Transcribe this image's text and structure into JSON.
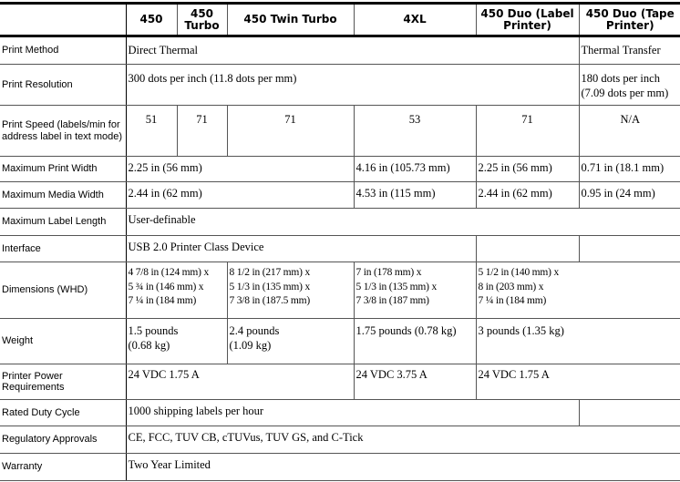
{
  "header": [
    "",
    "450",
    "450 Turbo",
    "450 Twin Turbo",
    "4XL",
    "450 Duo (Label Printer)",
    "450 Duo (Tape Printer)"
  ],
  "rows": {
    "print_method": {
      "label": "Print Method",
      "direct": "Direct Thermal",
      "tape": "Thermal Transfer"
    },
    "print_resolution": {
      "label": "Print Resolution",
      "main": "300 dots per inch (11.8 dots per mm)",
      "tape": "180 dots per inch (7.09 dots per mm)"
    },
    "print_speed": {
      "label": "Print Speed (labels/min for address label in text mode)",
      "values": [
        "51",
        "71",
        "71",
        "53",
        "71",
        "N/A"
      ]
    },
    "max_print_width": {
      "label": "Maximum Print Width",
      "a": "2.25 in (56 mm)",
      "b": "4.16 in (105.73 mm)",
      "c": "2.25 in (56 mm)",
      "d": "0.71 in (18.1 mm)"
    },
    "max_media_width": {
      "label": "Maximum Media Width",
      "a": "2.44 in (62 mm)",
      "b": "4.53 in (115 mm)",
      "c": "2.44 in (62 mm)",
      "d": "0.95 in (24 mm)"
    },
    "max_label_length": {
      "label": "Maximum Label Length",
      "a": "User-definable"
    },
    "interface": {
      "label": "Interface",
      "a": "USB 2.0 Printer Class Device",
      "b": "",
      "c": ""
    },
    "dimensions": {
      "label": "Dimensions (WHD)",
      "a": [
        "4 7/8 in (124 mm) x",
        "5 ¾ in (146 mm) x",
        "7 ¼ in (184 mm)"
      ],
      "b": [
        "8 1/2 in (217 mm) x",
        "5 1/3 in (135 mm) x",
        "7 3/8 in (187.5 mm)"
      ],
      "c": [
        "7 in (178 mm) x",
        "5 1/3 in (135 mm) x",
        "7 3/8 in (187 mm)"
      ],
      "d": [
        "5 1/2 in (140 mm) x",
        "8 in (203 mm) x",
        "7 ¼ in (184 mm)"
      ]
    },
    "weight": {
      "label": "Weight",
      "a": [
        "1.5 pounds",
        "(0.68 kg)"
      ],
      "b": [
        "2.4 pounds",
        "(1.09 kg)"
      ],
      "c": "1.75 pounds (0.78 kg)",
      "d": "3 pounds (1.35 kg)"
    },
    "power": {
      "label": "Printer Power Requirements",
      "a": "24 VDC 1.75 A",
      "b": "24 VDC 3.75 A",
      "c": "24 VDC 1.75 A"
    },
    "duty_cycle": {
      "label": "Rated Duty Cycle",
      "a": "1000 shipping labels per hour",
      "b": ""
    },
    "regulatory": {
      "label": "Regulatory Approvals",
      "a": "CE, FCC, TUV CB, cTUVus, TUV GS, and C-Tick"
    },
    "warranty": {
      "label": "Warranty",
      "a": "Two Year Limited"
    }
  }
}
